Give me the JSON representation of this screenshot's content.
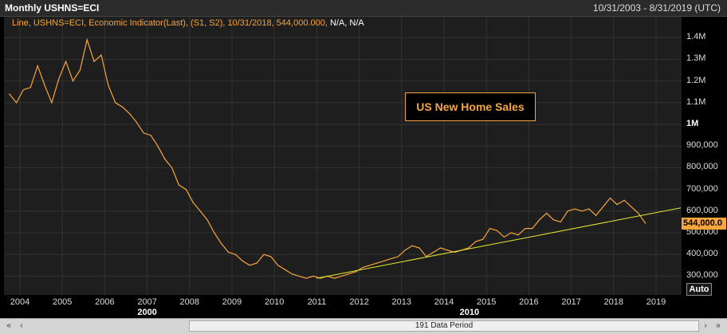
{
  "header": {
    "title": "Monthly USHNS=ECI",
    "date_range": "10/31/2003 - 8/31/2019 (UTC)"
  },
  "legend": {
    "text": "Line, USHNS=ECI, Economic Indicator(Last), (S1, S2), 10/31/2018, 544,000.000,",
    "na_text": "N/A, N/A"
  },
  "annotation": {
    "label": "US New Home Sales"
  },
  "y_axis": {
    "ticks": [
      {
        "label": "1.4M",
        "value": 1400000,
        "bold": false
      },
      {
        "label": "1.3M",
        "value": 1300000,
        "bold": false
      },
      {
        "label": "1.2M",
        "value": 1200000,
        "bold": false
      },
      {
        "label": "1.1M",
        "value": 1100000,
        "bold": false
      },
      {
        "label": "1M",
        "value": 1000000,
        "bold": true
      },
      {
        "label": "900,000",
        "value": 900000,
        "bold": false
      },
      {
        "label": "800,000",
        "value": 800000,
        "bold": false
      },
      {
        "label": "700,000",
        "value": 700000,
        "bold": false
      },
      {
        "label": "600,000",
        "value": 600000,
        "bold": false
      },
      {
        "label": "500,000",
        "value": 500000,
        "bold": false
      },
      {
        "label": "400,000",
        "value": 400000,
        "bold": false
      },
      {
        "label": "300,000",
        "value": 300000,
        "bold": false
      }
    ],
    "last_value_label": "544,000.0",
    "auto_label": "Auto"
  },
  "x_axis": {
    "year_ticks": [
      "2004",
      "2005",
      "2006",
      "2007",
      "2008",
      "2009",
      "2010",
      "2011",
      "2012",
      "2013",
      "2014",
      "2015",
      "2016",
      "2017",
      "2018",
      "2019"
    ],
    "major_labels": [
      {
        "label": "2000",
        "year": 2007.0
      },
      {
        "label": "2010",
        "year": 2014.6
      }
    ]
  },
  "scrollbar": {
    "label": "191 Data Period"
  },
  "colors": {
    "line": "#f7a53c",
    "trendline": "#e8e830",
    "grid": "#333333"
  },
  "chart_data": {
    "type": "line",
    "title": "Monthly USHNS=ECI",
    "ylim": [
      250000,
      1450000
    ],
    "xlim": [
      "2003-10",
      "2019-08"
    ],
    "series": [
      {
        "name": "USHNS=ECI",
        "x": [
          "2003-10",
          "2003-12",
          "2004-02",
          "2004-04",
          "2004-06",
          "2004-08",
          "2004-10",
          "2004-12",
          "2005-02",
          "2005-04",
          "2005-06",
          "2005-08",
          "2005-10",
          "2005-12",
          "2006-02",
          "2006-04",
          "2006-06",
          "2006-08",
          "2006-10",
          "2006-12",
          "2007-02",
          "2007-04",
          "2007-06",
          "2007-08",
          "2007-10",
          "2007-12",
          "2008-02",
          "2008-04",
          "2008-06",
          "2008-08",
          "2008-10",
          "2008-12",
          "2009-02",
          "2009-04",
          "2009-06",
          "2009-08",
          "2009-10",
          "2009-12",
          "2010-02",
          "2010-04",
          "2010-06",
          "2010-08",
          "2010-10",
          "2010-12",
          "2011-02",
          "2011-04",
          "2011-06",
          "2011-08",
          "2011-10",
          "2011-12",
          "2012-02",
          "2012-04",
          "2012-06",
          "2012-08",
          "2012-10",
          "2012-12",
          "2013-02",
          "2013-04",
          "2013-06",
          "2013-08",
          "2013-10",
          "2013-12",
          "2014-02",
          "2014-04",
          "2014-06",
          "2014-08",
          "2014-10",
          "2014-12",
          "2015-02",
          "2015-04",
          "2015-06",
          "2015-08",
          "2015-10",
          "2015-12",
          "2016-02",
          "2016-04",
          "2016-06",
          "2016-08",
          "2016-10",
          "2016-12",
          "2017-02",
          "2017-04",
          "2017-06",
          "2017-08",
          "2017-10",
          "2017-12",
          "2018-02",
          "2018-04",
          "2018-06",
          "2018-08",
          "2018-10"
        ],
        "values": [
          1140000,
          1100000,
          1160000,
          1170000,
          1270000,
          1180000,
          1100000,
          1210000,
          1290000,
          1200000,
          1250000,
          1390000,
          1290000,
          1320000,
          1180000,
          1100000,
          1080000,
          1050000,
          1010000,
          960000,
          950000,
          900000,
          840000,
          800000,
          720000,
          700000,
          640000,
          600000,
          560000,
          500000,
          450000,
          410000,
          400000,
          370000,
          350000,
          360000,
          400000,
          390000,
          350000,
          330000,
          310000,
          300000,
          290000,
          300000,
          290000,
          300000,
          290000,
          300000,
          310000,
          320000,
          340000,
          350000,
          360000,
          370000,
          380000,
          390000,
          420000,
          440000,
          430000,
          390000,
          410000,
          430000,
          420000,
          410000,
          420000,
          430000,
          460000,
          470000,
          520000,
          510000,
          480000,
          500000,
          490000,
          520000,
          520000,
          560000,
          590000,
          560000,
          550000,
          600000,
          610000,
          600000,
          610000,
          580000,
          620000,
          660000,
          630000,
          650000,
          620000,
          590000,
          544000
        ]
      },
      {
        "name": "Trendline",
        "x": [
          "2011-01",
          "2019-08"
        ],
        "values": [
          290000,
          615000
        ]
      }
    ]
  }
}
